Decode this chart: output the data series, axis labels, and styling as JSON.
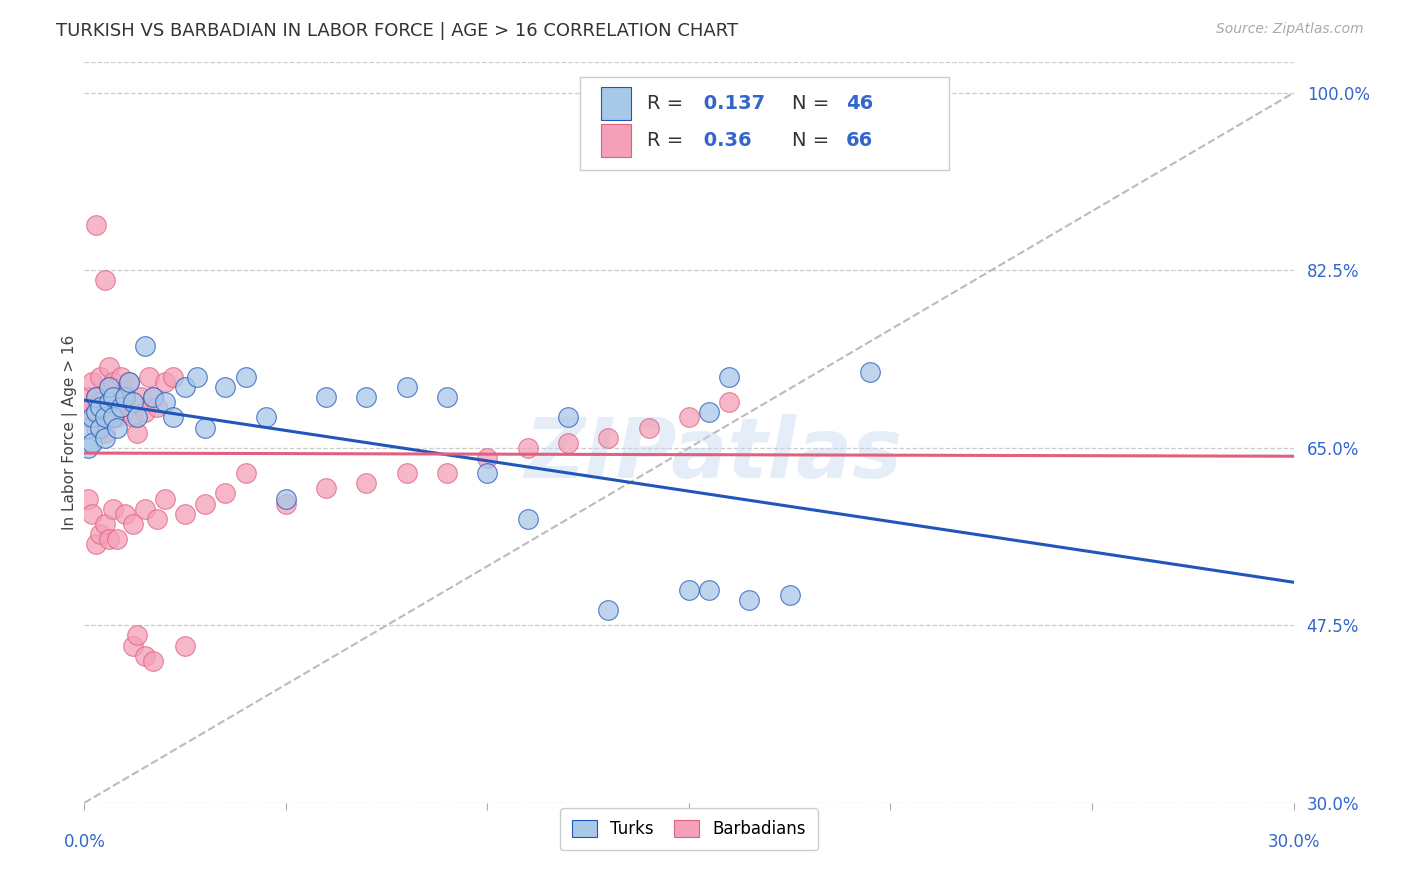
{
  "title": "TURKISH VS BARBADIAN IN LABOR FORCE | AGE > 16 CORRELATION CHART",
  "source": "Source: ZipAtlas.com",
  "ylabel": "In Labor Force | Age > 16",
  "xlim": [
    0.0,
    0.3
  ],
  "ylim": [
    0.3,
    1.03
  ],
  "yticks_right": [
    0.3,
    0.475,
    0.65,
    0.825,
    1.0
  ],
  "yticklabels_right": [
    "30.0%",
    "47.5%",
    "65.0%",
    "82.5%",
    "100.0%"
  ],
  "turks_R": 0.137,
  "turks_N": 46,
  "barbadians_R": 0.36,
  "barbadians_N": 66,
  "turks_color": "#a8c8e8",
  "barbadians_color": "#f4a0b8",
  "turks_line_color": "#2255bb",
  "barbadians_line_color": "#e06080",
  "diagonal_color": "#bbbbbb",
  "turks_x": [
    0.001,
    0.001,
    0.002,
    0.002,
    0.003,
    0.003,
    0.004,
    0.004,
    0.005,
    0.005,
    0.006,
    0.006,
    0.007,
    0.007,
    0.008,
    0.009,
    0.01,
    0.011,
    0.012,
    0.013,
    0.015,
    0.017,
    0.02,
    0.022,
    0.025,
    0.028,
    0.03,
    0.035,
    0.04,
    0.045,
    0.05,
    0.06,
    0.07,
    0.08,
    0.09,
    0.1,
    0.11,
    0.12,
    0.13,
    0.15,
    0.155,
    0.16,
    0.175,
    0.195,
    0.155,
    0.165
  ],
  "turks_y": [
    0.67,
    0.65,
    0.68,
    0.655,
    0.685,
    0.7,
    0.67,
    0.69,
    0.66,
    0.68,
    0.695,
    0.71,
    0.68,
    0.7,
    0.67,
    0.69,
    0.7,
    0.715,
    0.695,
    0.68,
    0.75,
    0.7,
    0.695,
    0.68,
    0.71,
    0.72,
    0.67,
    0.71,
    0.72,
    0.68,
    0.6,
    0.7,
    0.7,
    0.71,
    0.7,
    0.625,
    0.58,
    0.68,
    0.49,
    0.51,
    0.685,
    0.72,
    0.505,
    0.725,
    0.51,
    0.5
  ],
  "barbadians_x": [
    0.001,
    0.001,
    0.002,
    0.002,
    0.003,
    0.003,
    0.004,
    0.004,
    0.005,
    0.005,
    0.006,
    0.006,
    0.007,
    0.007,
    0.008,
    0.008,
    0.009,
    0.009,
    0.01,
    0.01,
    0.011,
    0.012,
    0.013,
    0.014,
    0.015,
    0.016,
    0.017,
    0.018,
    0.02,
    0.022,
    0.001,
    0.002,
    0.003,
    0.004,
    0.005,
    0.006,
    0.007,
    0.008,
    0.01,
    0.012,
    0.015,
    0.018,
    0.02,
    0.025,
    0.03,
    0.035,
    0.04,
    0.05,
    0.06,
    0.07,
    0.08,
    0.09,
    0.1,
    0.11,
    0.12,
    0.13,
    0.14,
    0.15,
    0.16,
    0.012,
    0.013,
    0.025,
    0.003,
    0.005,
    0.015,
    0.017
  ],
  "barbadians_y": [
    0.7,
    0.68,
    0.715,
    0.69,
    0.67,
    0.7,
    0.72,
    0.695,
    0.685,
    0.665,
    0.71,
    0.73,
    0.695,
    0.715,
    0.68,
    0.7,
    0.72,
    0.695,
    0.705,
    0.685,
    0.715,
    0.68,
    0.665,
    0.7,
    0.685,
    0.72,
    0.7,
    0.69,
    0.715,
    0.72,
    0.6,
    0.585,
    0.555,
    0.565,
    0.575,
    0.56,
    0.59,
    0.56,
    0.585,
    0.575,
    0.59,
    0.58,
    0.6,
    0.585,
    0.595,
    0.605,
    0.625,
    0.595,
    0.61,
    0.615,
    0.625,
    0.625,
    0.64,
    0.65,
    0.655,
    0.66,
    0.67,
    0.68,
    0.695,
    0.455,
    0.465,
    0.455,
    0.87,
    0.815,
    0.445,
    0.44
  ],
  "watermark": "ZIPatlas",
  "background_color": "#ffffff",
  "grid_color": "#cccccc"
}
